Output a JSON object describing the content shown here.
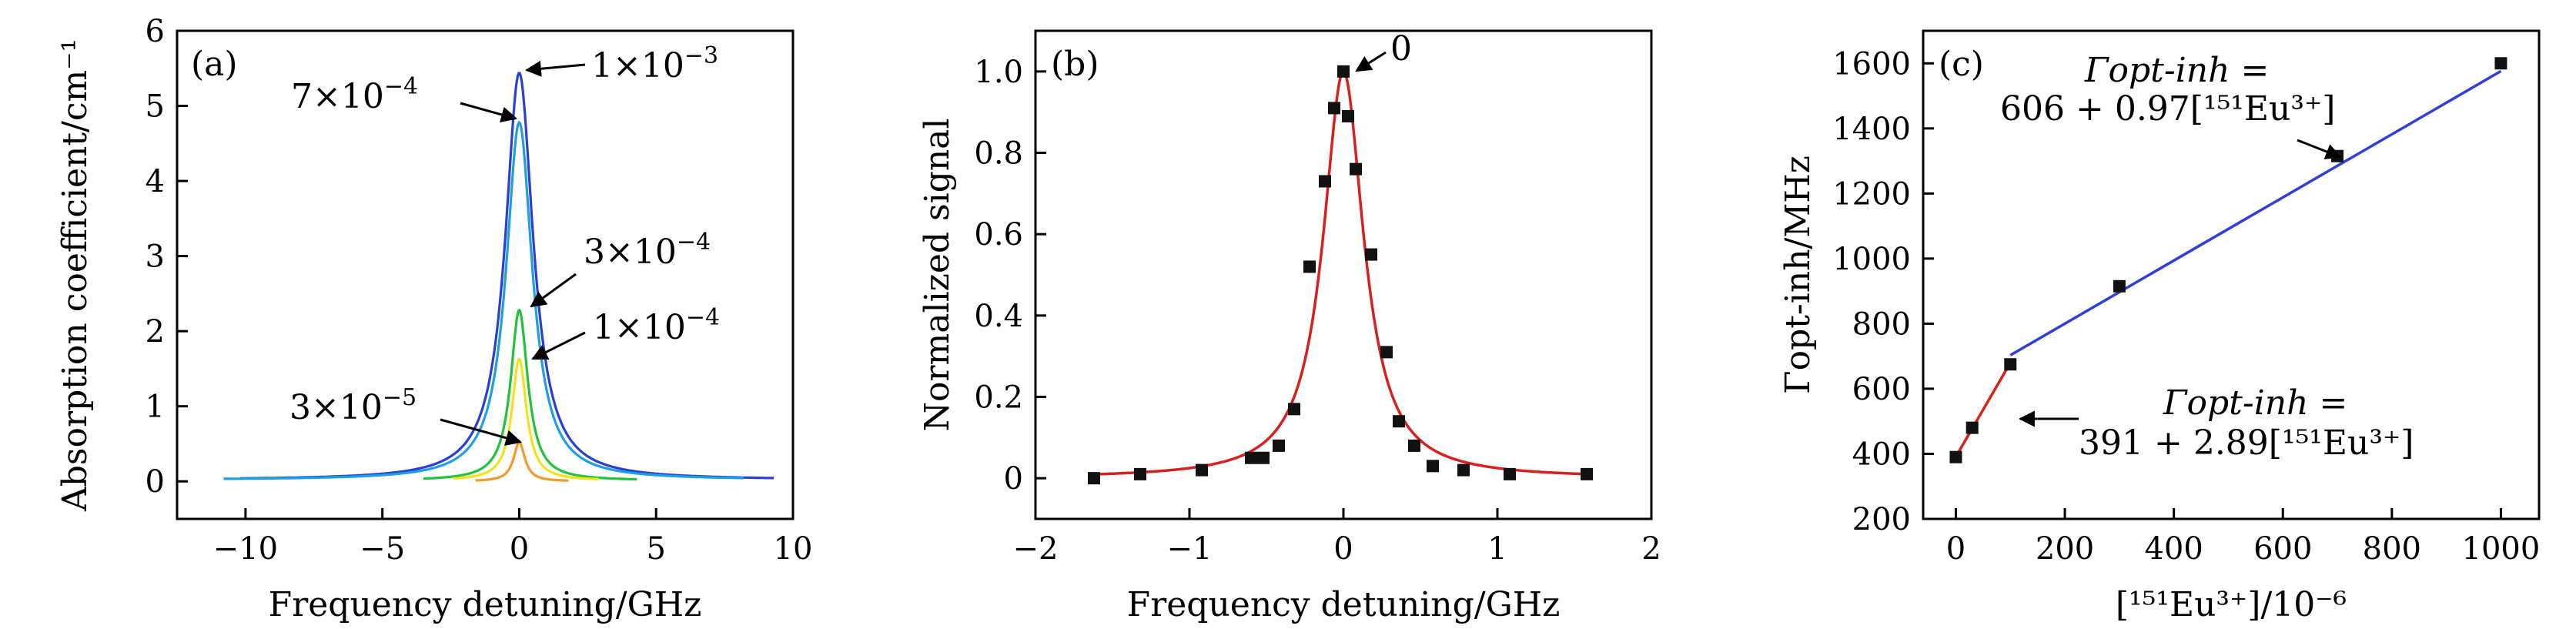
{
  "chart_data": [
    {
      "panel": "(a)",
      "type": "line",
      "xlabel": "Frequency detuning/GHz",
      "ylabel": "Absorption coefficient/cm⁻¹",
      "xlim": [
        -12.5,
        10
      ],
      "ylim": [
        -0.5,
        6
      ],
      "xticks": [
        -10,
        -5,
        0,
        5,
        10
      ],
      "xtick_labels": [
        "−10",
        "−5",
        "0",
        "5",
        "10"
      ],
      "yticks": [
        0,
        1,
        2,
        3,
        4,
        5,
        6
      ],
      "ytick_labels": [
        "0",
        "1",
        "2",
        "3",
        "4",
        "5",
        "6"
      ],
      "series": [
        {
          "color": "#2a3fd6",
          "peak": 5.42,
          "width": 0.62,
          "base": 0.02,
          "x_range": [
            -10.2,
            9.3
          ]
        },
        {
          "color": "#1f9fe0",
          "peak": 4.76,
          "width": 0.58,
          "base": 0.02,
          "x_range": [
            -10.8,
            8.2
          ]
        },
        {
          "color": "#23c23a",
          "peak": 2.27,
          "width": 0.38,
          "base": 0.01,
          "x_range": [
            -3.5,
            4.3
          ]
        },
        {
          "color": "#f2e21a",
          "peak": 1.62,
          "width": 0.32,
          "base": 0.01,
          "x_range": [
            -2.4,
            2.9
          ]
        },
        {
          "color": "#f39a2c",
          "peak": 0.52,
          "width": 0.25,
          "base": 0.0,
          "x_range": [
            -1.6,
            1.8
          ]
        }
      ],
      "annotations": [
        {
          "label": "1×10",
          "exp": "−3",
          "x": 0.3,
          "y": 5.42
        },
        {
          "label": "7×10",
          "exp": "−4",
          "x": -0.1,
          "y": 4.72
        },
        {
          "label": "3×10",
          "exp": "−4",
          "x": 0.15,
          "y": 2.3
        },
        {
          "label": "1×10",
          "exp": "−4",
          "x": 0.3,
          "y": 1.65
        },
        {
          "label": "3×10",
          "exp": "−5",
          "x": 0.1,
          "y": 0.5
        }
      ]
    },
    {
      "panel": "(b)",
      "type": "scatter",
      "xlabel": "Frequency detuning/GHz",
      "ylabel": "Normalized signal",
      "xlim": [
        -2.0,
        2.0
      ],
      "ylim": [
        -0.1,
        1.1
      ],
      "xticks": [
        -2,
        -1,
        0,
        1,
        2
      ],
      "xtick_labels": [
        "−2",
        "−1",
        "0",
        "1",
        "2"
      ],
      "yticks": [
        0,
        0.2,
        0.4,
        0.6,
        0.8,
        1.0
      ],
      "ytick_labels": [
        "0",
        "0.2",
        "0.4",
        "0.6",
        "0.8",
        "1.0"
      ],
      "points": {
        "x": [
          -1.62,
          -1.32,
          -0.92,
          -0.6,
          -0.52,
          -0.42,
          -0.32,
          -0.22,
          -0.12,
          -0.06,
          0.0,
          0.03,
          0.08,
          0.18,
          0.28,
          0.36,
          0.46,
          0.58,
          0.78,
          1.08,
          1.58
        ],
        "y": [
          0.0,
          0.01,
          0.02,
          0.05,
          0.05,
          0.08,
          0.17,
          0.52,
          0.73,
          0.91,
          1.0,
          0.89,
          0.76,
          0.55,
          0.31,
          0.14,
          0.08,
          0.03,
          0.02,
          0.01,
          0.01
        ]
      },
      "fit": {
        "color": "#d8201e",
        "center": 0.0,
        "width": 0.16
      },
      "annotations": [
        {
          "label": "0",
          "x": 0.04,
          "y": 1.0
        }
      ]
    },
    {
      "panel": "(c)",
      "type": "scatter",
      "xlabel": "[¹⁵¹Eu³⁺]/10⁻⁶",
      "ylabel": "Γopt-inh/MHz",
      "xlim": [
        -60,
        1070
      ],
      "ylim": [
        200,
        1700
      ],
      "xticks": [
        0,
        200,
        400,
        600,
        800,
        1000
      ],
      "xtick_labels": [
        "0",
        "200",
        "400",
        "600",
        "800",
        "1000"
      ],
      "yticks": [
        200,
        400,
        600,
        800,
        1000,
        1200,
        1400,
        1600
      ],
      "ytick_labels": [
        "200",
        "400",
        "600",
        "800",
        "1000",
        "1200",
        "1400",
        "1600"
      ],
      "points": {
        "x": [
          0,
          30,
          100,
          300,
          700,
          1000
        ],
        "y": [
          390,
          480,
          675,
          915,
          1315,
          1600
        ]
      },
      "fits": [
        {
          "color": "#d8201e",
          "intercept": 391,
          "slope": 2.89,
          "x_range": [
            0,
            100
          ]
        },
        {
          "color": "#2f3fd8",
          "intercept": 606,
          "slope": 0.97,
          "x_range": [
            100,
            1000
          ]
        }
      ],
      "equations": [
        {
          "line1": "Γopt-inh =",
          "line2": "606 + 0.97[¹⁵¹Eu³⁺]"
        },
        {
          "line1": "Γopt-inh =",
          "line2": "391 + 2.89[¹⁵¹Eu³⁺]"
        }
      ]
    }
  ]
}
